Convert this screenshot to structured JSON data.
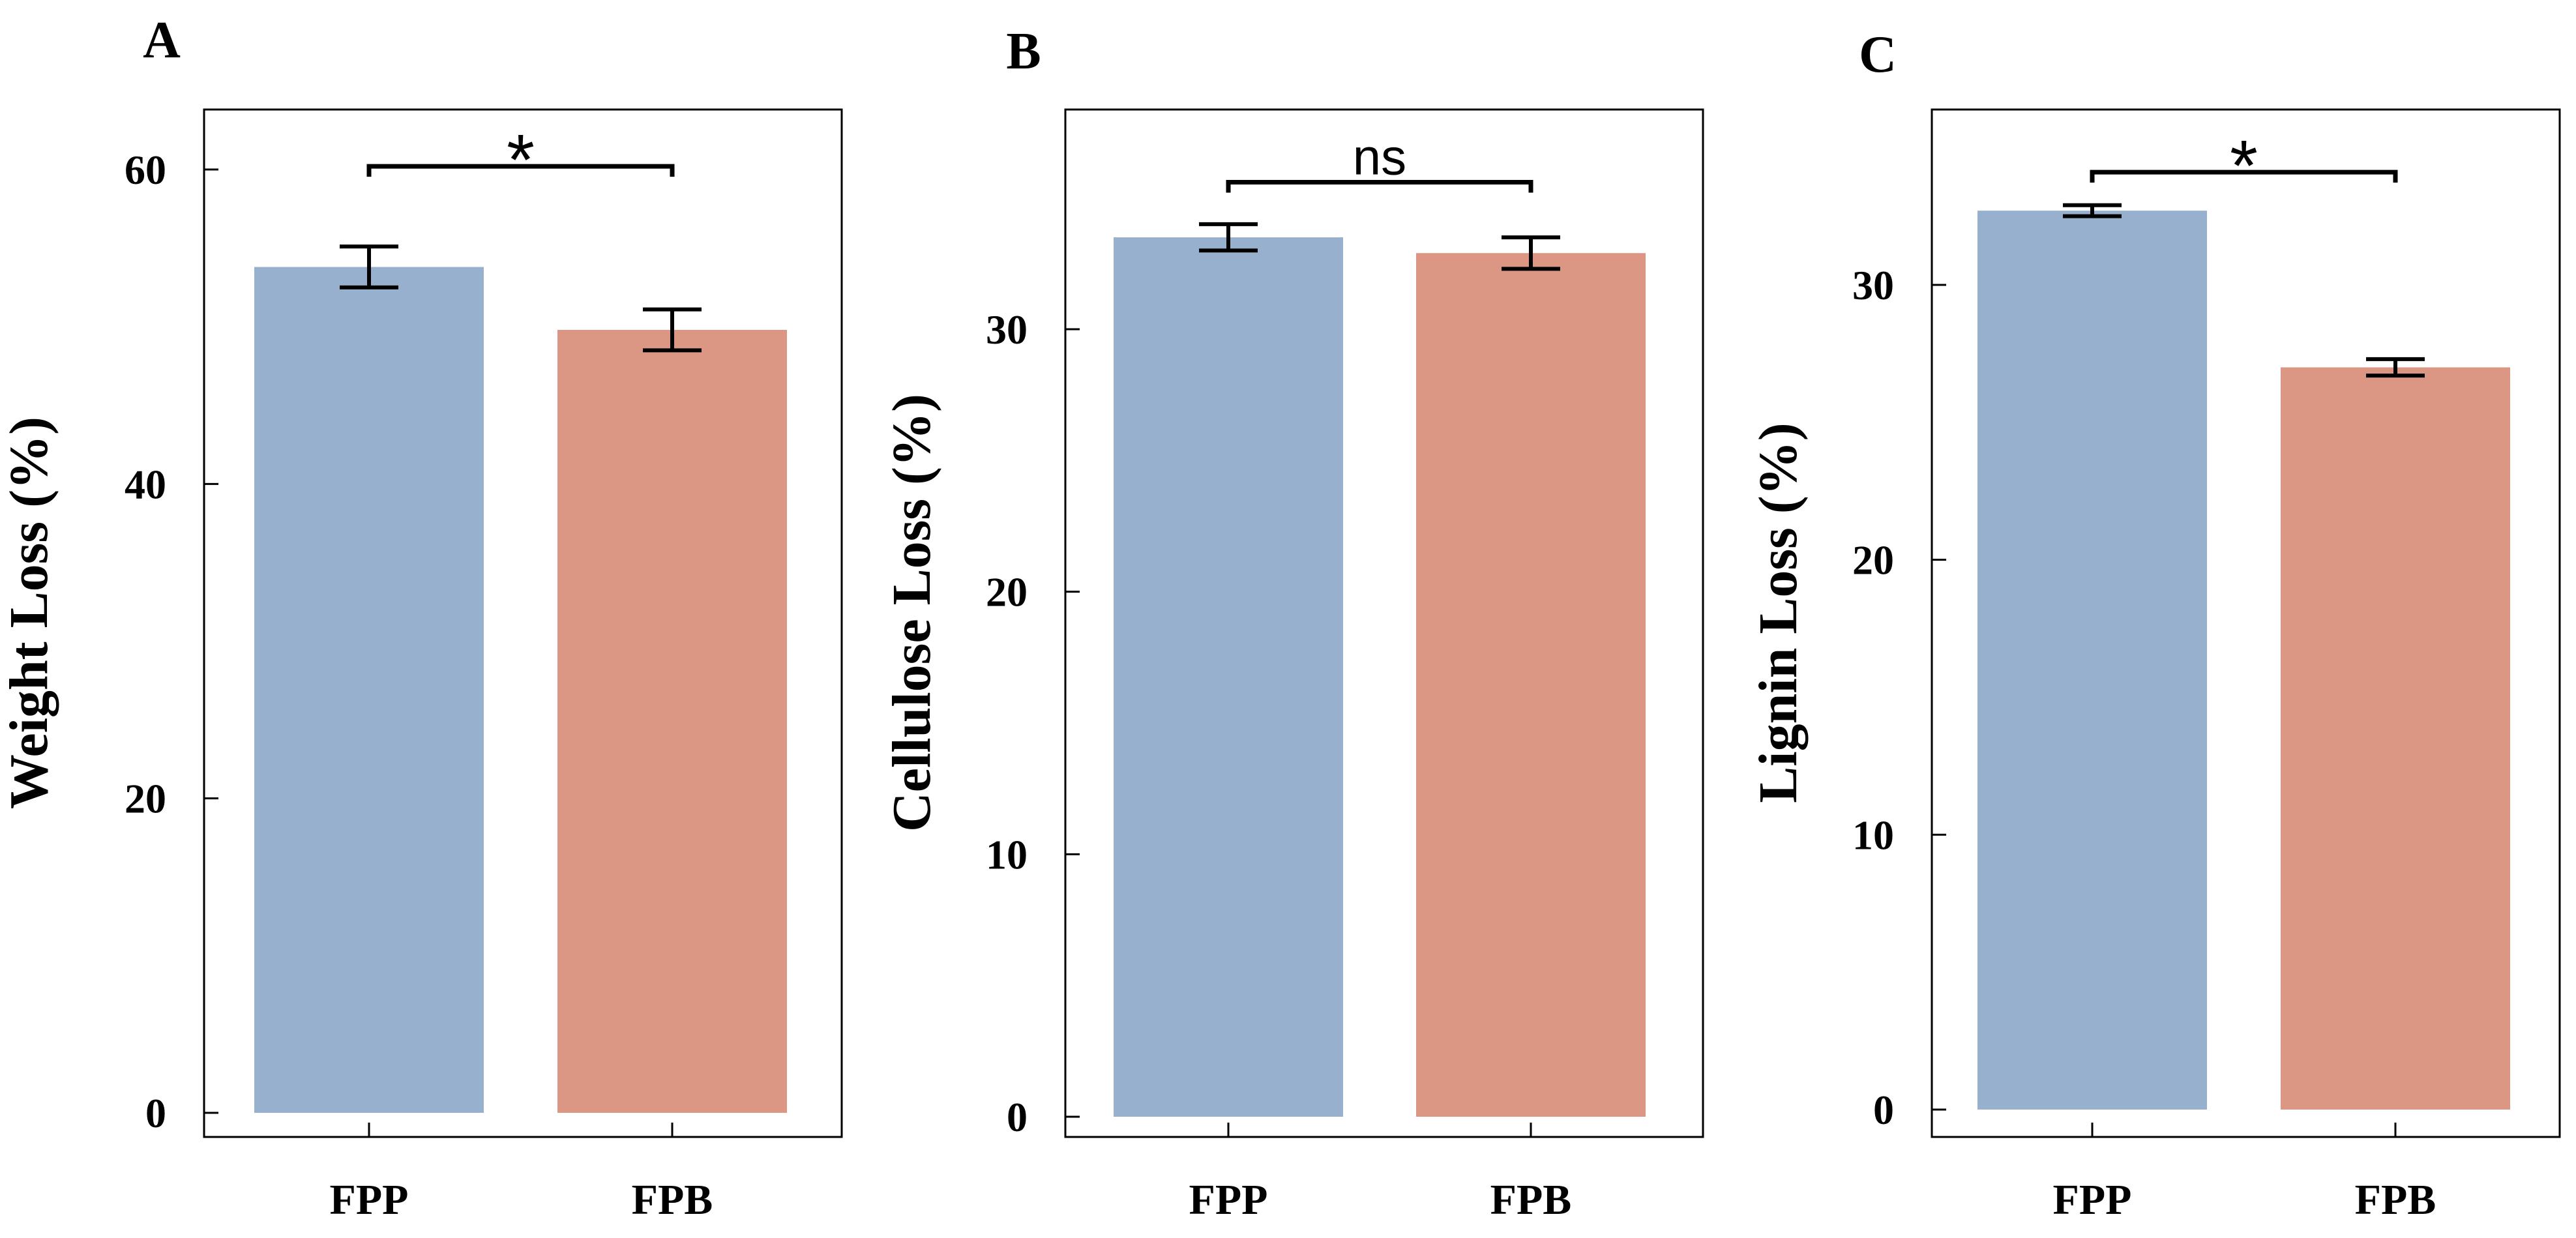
{
  "figure": {
    "colors": {
      "FPP": "#97b0cd",
      "FPB": "#db9684",
      "frame": "#000000"
    }
  },
  "chart_data": [
    {
      "type": "bar",
      "panel_label": "A",
      "title": "",
      "xlabel": "",
      "ylabel": "Weight Loss (%)",
      "categories": [
        "FPP",
        "FPB"
      ],
      "values": [
        53.8,
        49.8
      ],
      "errors": [
        1.3,
        1.3
      ],
      "ylim": [
        0,
        65
      ],
      "yticks": [
        0,
        20,
        40,
        60
      ],
      "significance": {
        "label": "*",
        "between": [
          "FPP",
          "FPB"
        ],
        "y": 60.2
      },
      "grid": false
    },
    {
      "type": "bar",
      "panel_label": "B",
      "title": "",
      "xlabel": "",
      "ylabel": "Cellulose Loss (%)",
      "categories": [
        "FPP",
        "FPB"
      ],
      "values": [
        33.5,
        32.9
      ],
      "errors": [
        0.5,
        0.6
      ],
      "ylim": [
        0,
        38
      ],
      "yticks": [
        0,
        10,
        20,
        30
      ],
      "significance": {
        "label": "ns",
        "between": [
          "FPP",
          "FPB"
        ],
        "y": 35.6
      },
      "grid": false
    },
    {
      "type": "bar",
      "panel_label": "C",
      "title": "",
      "xlabel": "",
      "ylabel": "Lignin Loss (%)",
      "categories": [
        "FPP",
        "FPB"
      ],
      "values": [
        32.7,
        27.0
      ],
      "errors": [
        0.2,
        0.3
      ],
      "ylim": [
        0,
        36
      ],
      "yticks": [
        0,
        10,
        20,
        30
      ],
      "significance": {
        "label": "*",
        "between": [
          "FPP",
          "FPB"
        ],
        "y": 34.1
      },
      "grid": false
    }
  ]
}
